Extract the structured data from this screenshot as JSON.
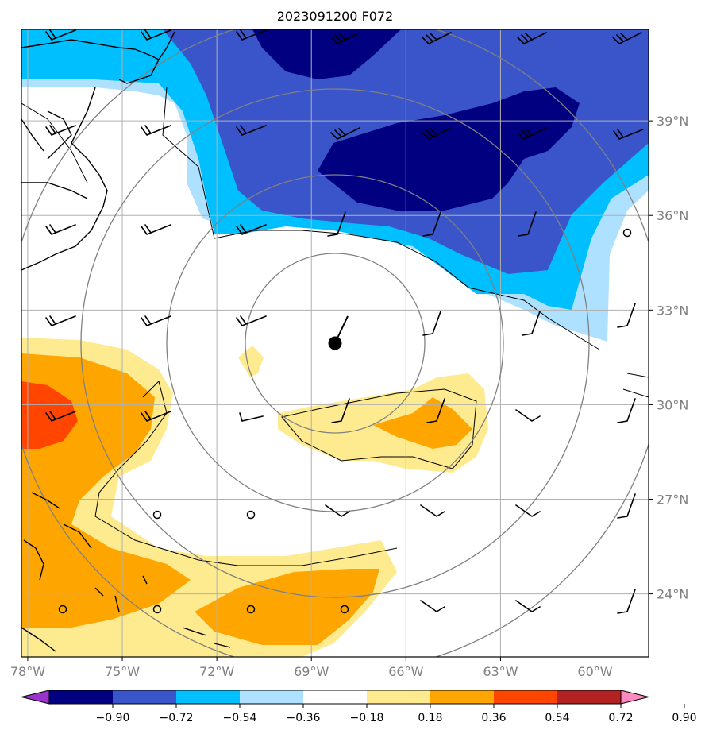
{
  "title": "2023091200 F072",
  "map": {
    "lon_range": [
      -78.2,
      -58.3
    ],
    "lat_range": [
      22.0,
      41.9
    ],
    "lon_ticks": [
      {
        "value": -78,
        "label": "78°W"
      },
      {
        "value": -75,
        "label": "75°W"
      },
      {
        "value": -72,
        "label": "72°W"
      },
      {
        "value": -69,
        "label": "69°W"
      },
      {
        "value": -66,
        "label": "66°W"
      },
      {
        "value": -63,
        "label": "63°W"
      },
      {
        "value": -60,
        "label": "60°W"
      }
    ],
    "lat_ticks": [
      {
        "value": 39,
        "label": "39°N"
      },
      {
        "value": 36,
        "label": "36°N"
      },
      {
        "value": 33,
        "label": "33°N"
      },
      {
        "value": 30,
        "label": "30°N"
      },
      {
        "value": 27,
        "label": "27°N"
      },
      {
        "value": 24,
        "label": "24°N"
      }
    ],
    "storm_center": {
      "lon": -68.3,
      "lat": 31.5
    },
    "range_rings": "concentric gray rings around storm center",
    "wind_barbs": "shown in black on a regular grid"
  },
  "colorbar": {
    "levels": [
      "−0.90",
      "−0.72",
      "−0.54",
      "−0.36",
      "−0.18",
      "0.18",
      "0.36",
      "0.54",
      "0.72",
      "0.90"
    ],
    "colors": [
      "#9933cc",
      "#000080",
      "#3a55c9",
      "#00bfff",
      "#aee1ff",
      "#ffffff",
      "#ffeb8f",
      "#ffa500",
      "#ff4500",
      "#b22222",
      "#ff88c0"
    ]
  }
}
